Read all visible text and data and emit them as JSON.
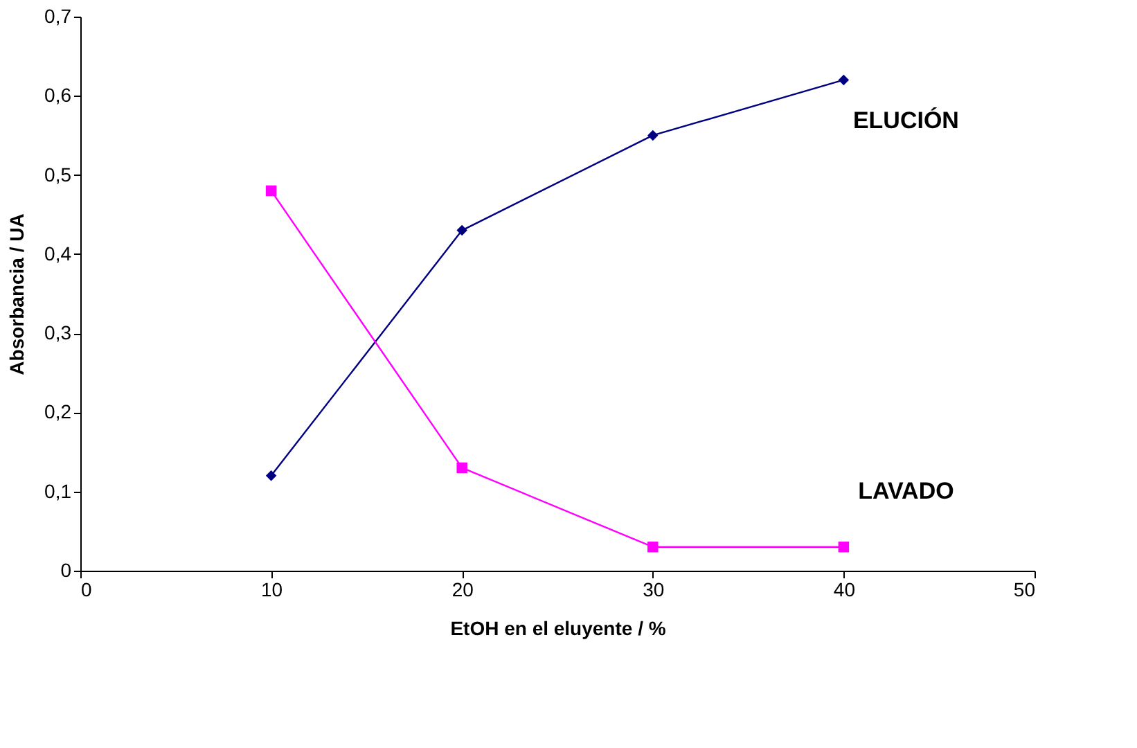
{
  "chart_data": {
    "type": "line",
    "xlabel": "EtOH en el eluyente / %",
    "ylabel": "Absorbancia / UA",
    "x": [
      10,
      20,
      30,
      40
    ],
    "series": [
      {
        "name": "ELUCIÓN",
        "color": "#000080",
        "marker": "diamond",
        "values": [
          0.12,
          0.43,
          0.55,
          0.62
        ]
      },
      {
        "name": "LAVADO",
        "color": "#ff00ff",
        "marker": "square",
        "values": [
          0.48,
          0.13,
          0.03,
          0.03
        ]
      }
    ],
    "xlim": [
      0,
      50
    ],
    "xticks": [
      0,
      10,
      20,
      30,
      40,
      50
    ],
    "ylim": [
      0,
      0.7
    ],
    "yticks": [
      0,
      {
        "value": 0.1,
        "label": "0,1"
      },
      {
        "value": 0.2,
        "label": "0,2"
      },
      {
        "value": 0.3,
        "label": "0,3"
      },
      {
        "value": 0.4,
        "label": "0,4"
      },
      {
        "value": 0.5,
        "label": "0,5"
      },
      {
        "value": 0.6,
        "label": "0,6"
      },
      {
        "value": 0.7,
        "label": "0,7"
      }
    ],
    "grid": false,
    "legend": false,
    "line_style": "solid"
  }
}
